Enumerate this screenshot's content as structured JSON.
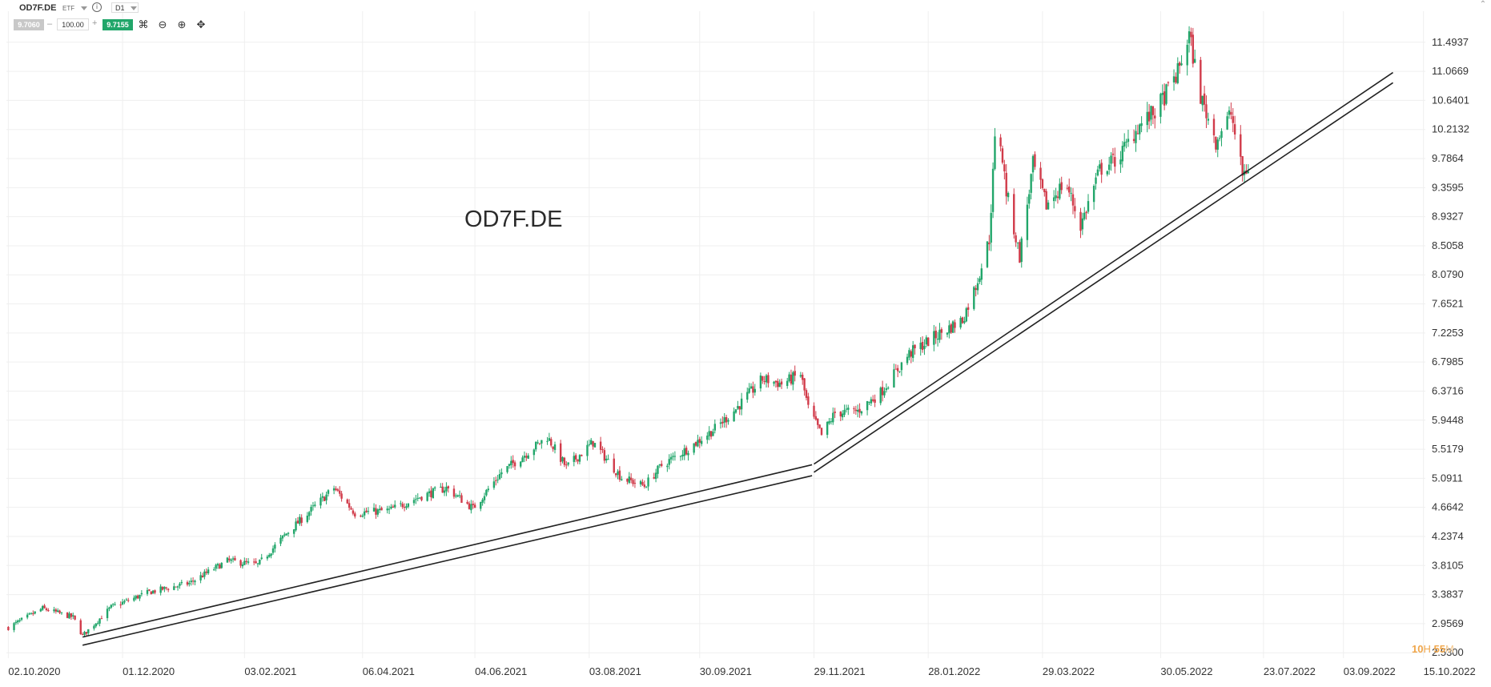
{
  "toolbar": {
    "symbol": "OD7F.DE",
    "instrument_type": "ETF",
    "timeframe": "D1",
    "bid": "9.7060",
    "quantity": "100.00",
    "ask": "9.7155",
    "tools": [
      "indicators-icon",
      "zoom-out-icon",
      "zoom-in-icon",
      "crosshair-icon"
    ]
  },
  "watermark": "OD7F.DE",
  "countdown": {
    "hours": "10",
    "hours_unit": "H",
    "minutes": "55",
    "minutes_unit": "M"
  },
  "colors": {
    "up": "#21a66a",
    "down": "#d13b4a",
    "grid": "#efefef",
    "trendline": "#222222",
    "text": "#333333"
  },
  "chart_data": {
    "type": "candlestick",
    "symbol": "OD7F.DE",
    "timeframe": "D1",
    "x_ticks": [
      "02.10.2020",
      "01.12.2020",
      "03.02.2021",
      "06.04.2021",
      "04.06.2021",
      "03.08.2021",
      "30.09.2021",
      "29.11.2021",
      "28.01.2022",
      "29.03.2022",
      "30.05.2022",
      "23.07.2022",
      "03.09.2022",
      "15.10.2022"
    ],
    "y_ticks": [
      "2.5300",
      "2.9569",
      "3.3837",
      "3.8105",
      "4.2374",
      "4.6642",
      "5.0911",
      "5.5179",
      "5.9448",
      "6.3716",
      "6.7985",
      "7.2253",
      "7.6521",
      "8.0790",
      "8.5058",
      "8.9327",
      "9.3595",
      "9.7864",
      "10.2132",
      "10.6401",
      "11.0669",
      "11.4937"
    ],
    "y_range": [
      2.45,
      11.95
    ],
    "x_range": [
      "2020-10-01",
      "2022-10-16"
    ],
    "close_path": [
      [
        "2020-10-02",
        2.9
      ],
      [
        "2020-10-20",
        3.18
      ],
      [
        "2020-11-05",
        3.05
      ],
      [
        "2020-11-10",
        2.78
      ],
      [
        "2020-11-25",
        3.2
      ],
      [
        "2020-12-15",
        3.42
      ],
      [
        "2021-01-05",
        3.55
      ],
      [
        "2021-01-25",
        3.88
      ],
      [
        "2021-02-10",
        3.82
      ],
      [
        "2021-02-25",
        4.28
      ],
      [
        "2021-03-12",
        4.68
      ],
      [
        "2021-03-22",
        4.95
      ],
      [
        "2021-04-02",
        4.58
      ],
      [
        "2021-04-20",
        4.62
      ],
      [
        "2021-05-06",
        4.82
      ],
      [
        "2021-05-20",
        4.95
      ],
      [
        "2021-06-03",
        4.65
      ],
      [
        "2021-06-18",
        5.18
      ],
      [
        "2021-07-02",
        5.48
      ],
      [
        "2021-07-12",
        5.7
      ],
      [
        "2021-07-22",
        5.25
      ],
      [
        "2021-08-05",
        5.62
      ],
      [
        "2021-08-20",
        5.1
      ],
      [
        "2021-09-01",
        4.98
      ],
      [
        "2021-09-10",
        5.28
      ],
      [
        "2021-09-25",
        5.55
      ],
      [
        "2021-10-08",
        5.82
      ],
      [
        "2021-10-18",
        6.08
      ],
      [
        "2021-11-02",
        6.55
      ],
      [
        "2021-11-12",
        6.48
      ],
      [
        "2021-11-22",
        6.62
      ],
      [
        "2021-11-26",
        6.12
      ],
      [
        "2021-12-03",
        5.72
      ],
      [
        "2021-12-10",
        6.05
      ],
      [
        "2021-12-22",
        6.08
      ],
      [
        "2022-01-03",
        6.35
      ],
      [
        "2022-01-18",
        6.92
      ],
      [
        "2022-02-01",
        7.18
      ],
      [
        "2022-02-15",
        7.42
      ],
      [
        "2022-02-22",
        7.92
      ],
      [
        "2022-03-01",
        8.6
      ],
      [
        "2022-03-05",
        10.5
      ],
      [
        "2022-03-10",
        9.3
      ],
      [
        "2022-03-17",
        8.35
      ],
      [
        "2022-03-24",
        9.7
      ],
      [
        "2022-03-31",
        9.1
      ],
      [
        "2022-04-10",
        9.45
      ],
      [
        "2022-04-18",
        8.8
      ],
      [
        "2022-04-28",
        9.62
      ],
      [
        "2022-05-08",
        9.8
      ],
      [
        "2022-05-18",
        10.25
      ],
      [
        "2022-05-28",
        10.5
      ],
      [
        "2022-06-08",
        11.05
      ],
      [
        "2022-06-14",
        11.6
      ],
      [
        "2022-06-20",
        10.7
      ],
      [
        "2022-06-28",
        10.05
      ],
      [
        "2022-07-06",
        10.45
      ],
      [
        "2022-07-12",
        9.55
      ],
      [
        "2022-07-16",
        9.68
      ]
    ],
    "trendlines": [
      {
        "from": [
          "2020-11-10",
          2.64
        ],
        "to": [
          "2021-11-28",
          5.13
        ]
      },
      {
        "from": [
          "2020-11-10",
          2.76
        ],
        "to": [
          "2021-11-28",
          5.29
        ]
      },
      {
        "from": [
          "2021-11-29",
          5.18
        ],
        "to": [
          "2022-09-29",
          10.9
        ]
      },
      {
        "from": [
          "2021-11-29",
          5.3
        ],
        "to": [
          "2022-09-29",
          11.05
        ]
      }
    ]
  }
}
